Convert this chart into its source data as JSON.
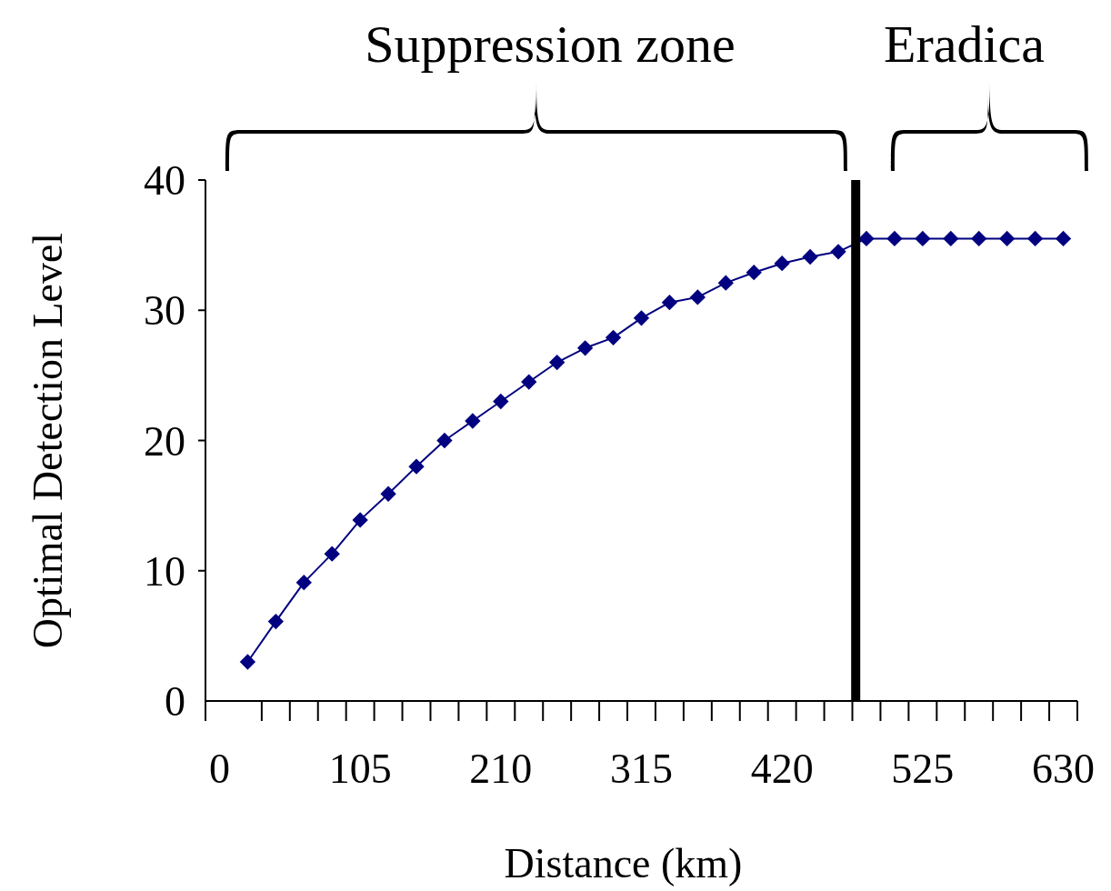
{
  "chart_data": {
    "type": "line",
    "xlabel": "Distance (km)",
    "ylabel": "Optimal Detection Level",
    "annotations": [
      "Suppression zone",
      "Eradica"
    ],
    "x": [
      21,
      42,
      63,
      84,
      105,
      126,
      147,
      168,
      189,
      210,
      231,
      252,
      273,
      294,
      315,
      336,
      357,
      378,
      399,
      420,
      441,
      462,
      483,
      504,
      525,
      546,
      567,
      588,
      609,
      630
    ],
    "series": [
      {
        "color": "#000080",
        "values": [
          3.0,
          6.1,
          9.1,
          11.3,
          13.9,
          15.9,
          18.0,
          20.0,
          21.5,
          23.0,
          24.5,
          26.0,
          27.1,
          27.9,
          29.4,
          30.6,
          31.0,
          32.1,
          32.9,
          33.6,
          34.1,
          34.5,
          35.5,
          35.5,
          35.5,
          35.5,
          35.5,
          35.5,
          35.5,
          35.5
        ]
      }
    ],
    "xlim": [
      -10.5,
      640.5
    ],
    "xticks": [
      0,
      105,
      210,
      315,
      420,
      525,
      630
    ],
    "ylim": [
      0,
      40
    ],
    "yticks": [
      0,
      10,
      20,
      30,
      40
    ],
    "ref_lines": [
      {
        "axis": "x",
        "value": 475,
        "color": "#000000"
      }
    ],
    "marker": "diamond",
    "line_style": "solid"
  }
}
